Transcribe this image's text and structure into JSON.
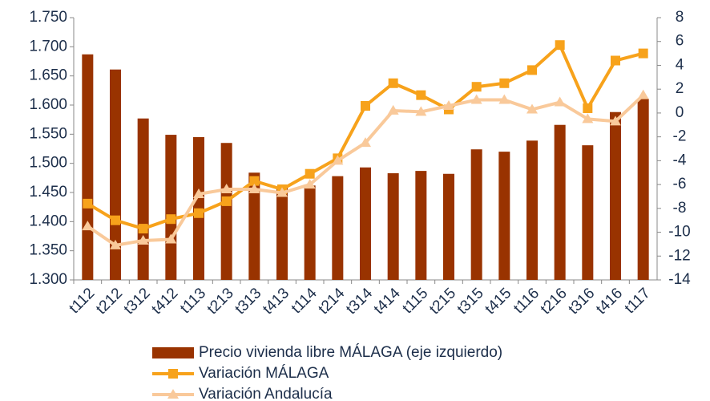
{
  "chart_data": {
    "type": "bar-line",
    "categories": [
      "t112",
      "t212",
      "t312",
      "t412",
      "t113",
      "t213",
      "t313",
      "t413",
      "t114",
      "t214",
      "t314",
      "t414",
      "t115",
      "t215",
      "t315",
      "t415",
      "t116",
      "t216",
      "t316",
      "t416",
      "t117"
    ],
    "series": [
      {
        "name": "Precio vivienda libre MÁLAGA (eje izquierdo)",
        "type": "bar",
        "color": "#993300",
        "axis": "y",
        "values": [
          1687,
          1661,
          1577,
          1549,
          1545,
          1535,
          1484,
          1460,
          1462,
          1478,
          1493,
          1483,
          1487,
          1482,
          1524,
          1520,
          1539,
          1566,
          1531,
          1588,
          1611
        ]
      },
      {
        "name": "Variación MÁLAGA",
        "type": "line",
        "marker": "square",
        "color": "#f7a21b",
        "axis": "y2",
        "values": [
          -7.6,
          -9.0,
          -9.7,
          -8.9,
          -8.4,
          -7.4,
          -5.7,
          -6.4,
          -5.1,
          -3.8,
          0.6,
          2.5,
          1.5,
          0.3,
          2.2,
          2.5,
          3.6,
          5.7,
          0.4,
          4.4,
          5.0
        ]
      },
      {
        "name": "Variación Andalucía",
        "type": "line",
        "marker": "triangle",
        "color": "#f9c99a",
        "axis": "y2",
        "values": [
          -9.5,
          -11.1,
          -10.7,
          -10.6,
          -6.8,
          -6.4,
          -6.4,
          -6.7,
          -6.0,
          -4.0,
          -2.5,
          0.2,
          0.1,
          0.6,
          1.1,
          1.1,
          0.3,
          0.9,
          -0.5,
          -0.7,
          1.5
        ]
      }
    ],
    "ylim": [
      1300,
      1750
    ],
    "yticks": [
      {
        "value": 1300,
        "label": "1.300"
      },
      {
        "value": 1350,
        "label": "1.350"
      },
      {
        "value": 1400,
        "label": "1.400"
      },
      {
        "value": 1450,
        "label": "1.450"
      },
      {
        "value": 1500,
        "label": "1.500"
      },
      {
        "value": 1550,
        "label": "1.550"
      },
      {
        "value": 1600,
        "label": "1.600"
      },
      {
        "value": 1650,
        "label": "1.650"
      },
      {
        "value": 1700,
        "label": "1.700"
      },
      {
        "value": 1750,
        "label": "1.750"
      }
    ],
    "y2lim": [
      -14,
      8
    ],
    "y2ticks": [
      -14,
      -12,
      -10,
      -8,
      -6,
      -4,
      -2,
      0,
      2,
      4,
      6,
      8
    ],
    "legend": "bottom"
  }
}
